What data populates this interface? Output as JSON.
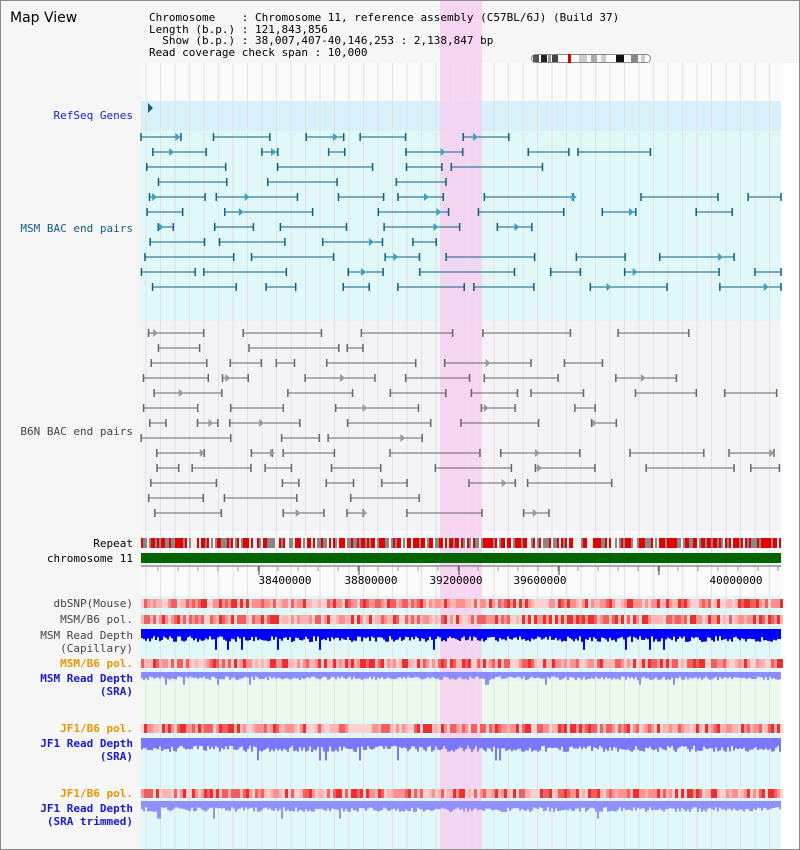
{
  "view": {
    "title": "Map View",
    "info_lines": [
      "Chromosome    : Chromosome 11, reference assembly (C57BL/6J) (Build 37)",
      "Length (b.p.) : 121,843,856",
      "  Show (b.p.) : 38,007,407-40,146,253 : 2,138,847 bp",
      "Read coverage check span : 10,000"
    ]
  },
  "tracks": {
    "refseq": "RefSeq Genes",
    "msm_bac": "MSM BAC end pairs",
    "b6n_bac": "B6N BAC end pairs",
    "repeat": "Repeat",
    "chromosome": "chromosome 11",
    "dbsnp": "dbSNP(Mouse)",
    "msm_b6_pol": "MSM/B6 pol.",
    "msm_depth_cap_1": "MSM Read Depth",
    "msm_depth_cap_2": "(Capillary)",
    "msm_b6_pol_sra": "MSM/B6 pol.",
    "msm_depth_sra_1": "MSM Read Depth",
    "msm_depth_sra_2": "(SRA)",
    "jf1_b6_pol": "JF1/B6 pol.",
    "jf1_depth_sra_1": "JF1 Read Depth",
    "jf1_depth_sra_2": "(SRA)",
    "jf1_b6_pol_trim": "JF1/B6 pol.",
    "jf1_depth_trim_1": "JF1 Read Depth",
    "jf1_depth_trim_2": "(SRA trimmed)"
  },
  "axis": {
    "ticks": [
      "38400000",
      "38800000",
      "39200000",
      "39600000",
      "40000000"
    ]
  },
  "colors": {
    "highlight": "#f6d0f0",
    "teal_track": "#0f6080",
    "gray_track": "#666666",
    "chromosome_bar": "#006400",
    "blue_depth": "#0000ff",
    "light_blue_depth": "#7878ff"
  }
}
